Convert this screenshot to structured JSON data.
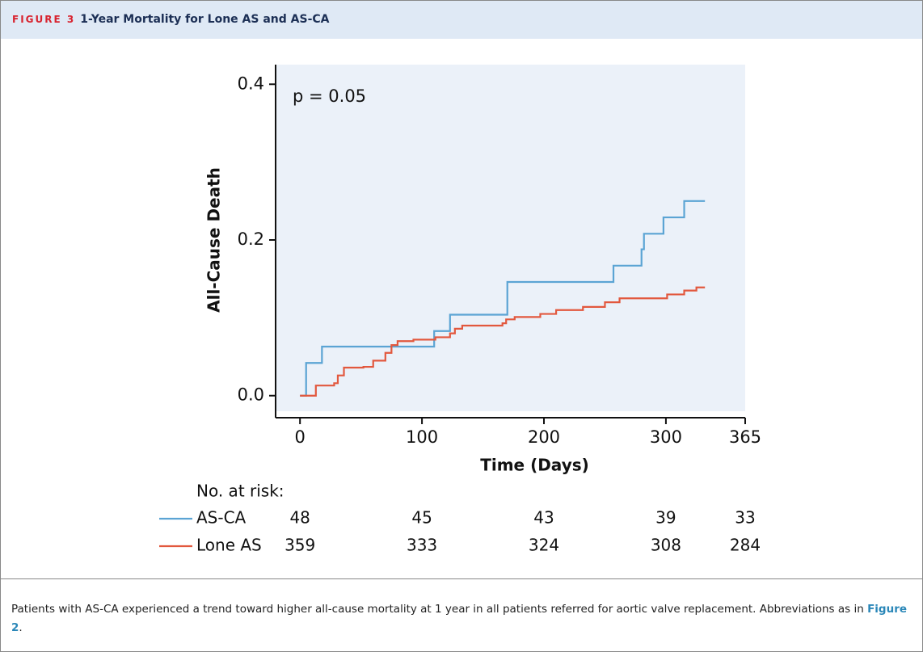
{
  "header": {
    "label": "FIGURE 3",
    "title": "1-Year Mortality for Lone AS and AS-CA"
  },
  "chart_data": {
    "type": "step",
    "annotation": "p = 0.05",
    "x_label": "Time (Days)",
    "y_label": "All-Cause Death",
    "xlim": [
      -20,
      365
    ],
    "xticks": [
      0,
      100,
      200,
      300,
      365
    ],
    "ylim": [
      -0.02,
      0.42
    ],
    "yticks": [
      {
        "value": 0,
        "label": "0.0"
      },
      0.2,
      0.4
    ],
    "risk_title": "No. at risk:",
    "series": [
      {
        "name": "AS-CA",
        "color": "#5ba4d4",
        "x": [
          0,
          5,
          18,
          110,
          123,
          170,
          257,
          280,
          282,
          298,
          315,
          332
        ],
        "values": [
          0,
          0.042,
          0.063,
          0.083,
          0.104,
          0.146,
          0.167,
          0.188,
          0.208,
          0.229,
          0.25,
          0.25
        ],
        "at_risk": [
          48,
          45,
          43,
          39,
          33
        ]
      },
      {
        "name": "Lone AS",
        "color": "#e2583e",
        "x": [
          0,
          13,
          28,
          31,
          36,
          52,
          60,
          70,
          75,
          80,
          93,
          111,
          123,
          127,
          133,
          166,
          169,
          176,
          197,
          210,
          232,
          250,
          262,
          301,
          315,
          325,
          332
        ],
        "values": [
          0,
          0.013,
          0.016,
          0.026,
          0.036,
          0.037,
          0.045,
          0.055,
          0.065,
          0.07,
          0.072,
          0.075,
          0.08,
          0.086,
          0.09,
          0.093,
          0.098,
          0.101,
          0.105,
          0.11,
          0.114,
          0.12,
          0.125,
          0.13,
          0.135,
          0.139,
          0.139
        ],
        "at_risk": [
          359,
          333,
          324,
          308,
          284
        ]
      }
    ]
  },
  "caption": [
    "Patients with AS-CA experienced a trend toward higher all-cause mortality at 1 year in all patients referred for aortic valve replacement. Abbreviations as in ",
    "Figure 2",
    "."
  ]
}
